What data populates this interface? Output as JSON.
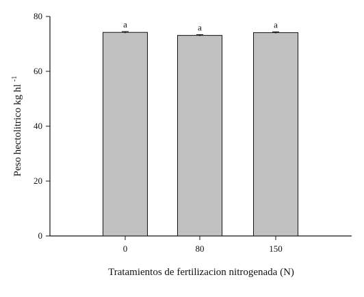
{
  "chart_data": {
    "type": "bar",
    "categories": [
      "0",
      "80",
      "150"
    ],
    "values": [
      74.2,
      73.1,
      74.1
    ],
    "errors": [
      0.3,
      0.3,
      0.3
    ],
    "significance_labels": [
      "a",
      "a",
      "a"
    ],
    "title": "",
    "xlabel": "Tratamientos de fertilizacion nitrogenada (N)",
    "ylabel": {
      "main": "Peso hectolitrico kg hl",
      "superscript": "-1"
    },
    "ylim": [
      0,
      80
    ],
    "yticks": [
      "0",
      "20",
      "40",
      "60",
      "80"
    ],
    "grid": false,
    "legend": "none",
    "bar_color": "#c0c0c0",
    "edge_color": "#111111"
  }
}
